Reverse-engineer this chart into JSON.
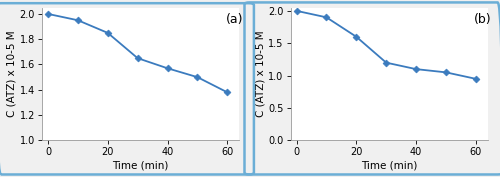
{
  "chart_a": {
    "x": [
      0,
      10,
      20,
      30,
      40,
      50,
      60
    ],
    "y": [
      2.0,
      1.95,
      1.85,
      1.65,
      1.57,
      1.5,
      1.38
    ],
    "ylim": [
      1.0,
      2.05
    ],
    "yticks": [
      1.0,
      1.2,
      1.4,
      1.6,
      1.8,
      2.0
    ],
    "ylabel": "C (ATZ) x 10-5 M",
    "xlabel": "Time (min)",
    "label": "(a)"
  },
  "chart_b": {
    "x": [
      0,
      10,
      20,
      30,
      40,
      50,
      60
    ],
    "y": [
      2.0,
      1.9,
      1.6,
      1.2,
      1.1,
      1.05,
      0.95
    ],
    "ylim": [
      0.0,
      2.05
    ],
    "yticks": [
      0.0,
      0.5,
      1.0,
      1.5,
      2.0
    ],
    "ylabel": "C (ATZ) x 10-5 M",
    "xlabel": "Time (min)",
    "label": "(b)"
  },
  "line_color": "#3B7BBE",
  "marker": "D",
  "markersize": 3.5,
  "linewidth": 1.3,
  "xticks": [
    0,
    20,
    40,
    60
  ],
  "border_color": "#6BAED6",
  "border_linewidth": 1.8,
  "bg_color": "#FFFFFF",
  "fig_bg_color": "#F0F0F0",
  "label_fontsize": 7.5,
  "tick_fontsize": 7,
  "annotation_fontsize": 9
}
